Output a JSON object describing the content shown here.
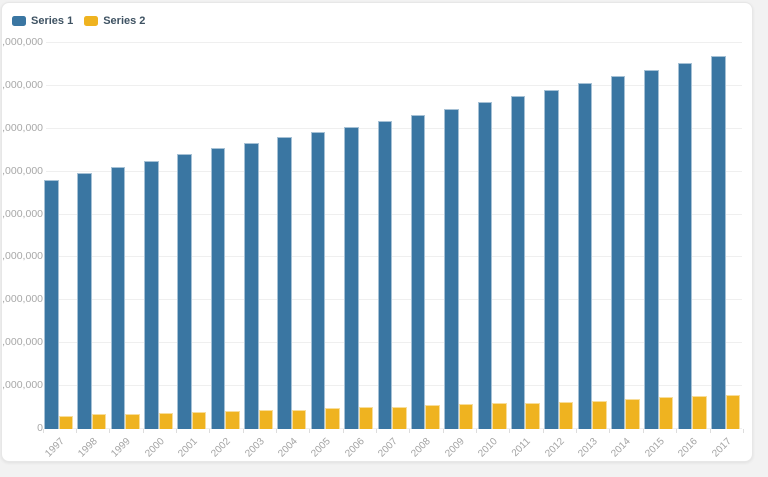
{
  "page": {
    "background": "#f2f2f2"
  },
  "card": {
    "background": "#ffffff",
    "border_color": "#e7e7e7"
  },
  "chart_data": {
    "type": "bar",
    "title": "",
    "xlabel": "",
    "ylabel": "",
    "categories": [
      "1997",
      "1998",
      "1999",
      "2000",
      "2001",
      "2002",
      "2003",
      "2004",
      "2005",
      "2006",
      "2007",
      "2008",
      "2009",
      "2010",
      "2011",
      "2012",
      "2013",
      "2014",
      "2015",
      "2016",
      "2017"
    ],
    "series": [
      {
        "name": "Series 1",
        "color": "#3a76a2",
        "values": [
          290000000,
          298000000,
          306000000,
          313000000,
          321000000,
          328000000,
          334000000,
          340000000,
          346000000,
          352000000,
          359000000,
          366000000,
          373000000,
          381000000,
          388000000,
          395000000,
          403000000,
          412000000,
          419000000,
          427000000,
          435000000
        ]
      },
      {
        "name": "Series 2",
        "color": "#efb320",
        "values": [
          15000000,
          17000000,
          18000000,
          19000000,
          20000000,
          21000000,
          22000000,
          22000000,
          24000000,
          26000000,
          26000000,
          28000000,
          29000000,
          30000000,
          30000000,
          32000000,
          33000000,
          35000000,
          37000000,
          38000000,
          40000000
        ]
      }
    ],
    "ylim": [
      0,
      450000000
    ],
    "y_tick_step": 50000000,
    "y_tick_labels_bottom_to_top": [
      "0",
      ",000,000",
      ",000,000",
      ",000,000",
      ",000,000",
      ",000,000",
      ",000,000",
      ",000,000",
      ",000,000",
      ",000,000"
    ],
    "x_tick_label_rotation_deg": -45,
    "grid": true,
    "legend_position": "top-left",
    "legend_entries": [
      "Series 1",
      "Series 2"
    ]
  }
}
